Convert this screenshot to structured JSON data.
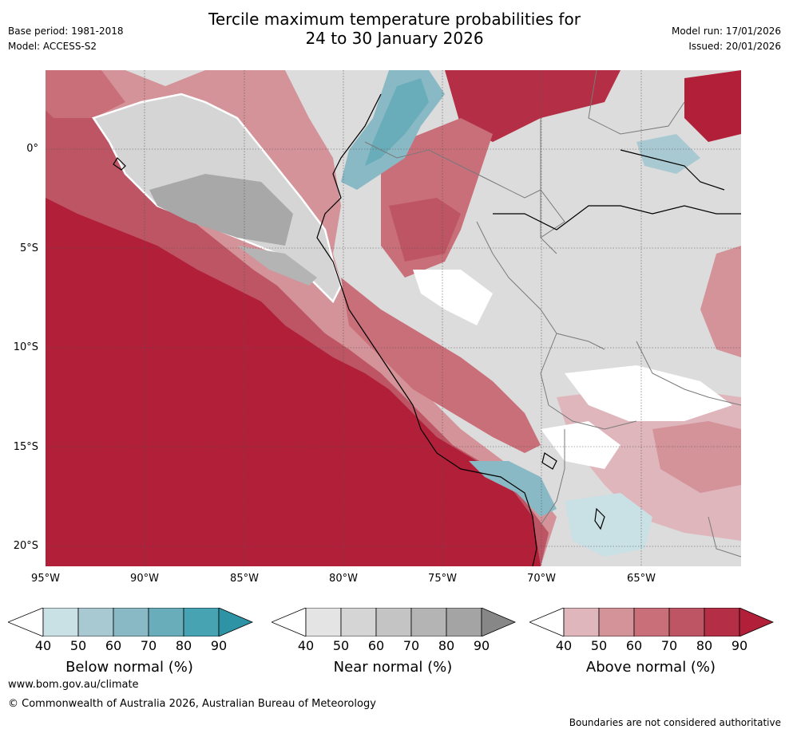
{
  "header": {
    "title_line1": "Tercile maximum temperature probabilities for",
    "title_line2": "24 to 30 January 2026",
    "base_period": "Base period: 1981-2018",
    "model": "Model: ACCESS-S2",
    "model_run": "Model run: 17/01/2026",
    "issued": "Issued: 20/01/2026"
  },
  "map": {
    "latitude_labels": [
      "0°",
      "5°S",
      "10°S",
      "15°S",
      "20°S"
    ],
    "longitude_labels": [
      "95°W",
      "90°W",
      "85°W",
      "80°W",
      "75°W",
      "70°W",
      "65°W"
    ],
    "colors": {
      "above": [
        "#dfb6bc",
        "#d49299",
        "#c96f7a",
        "#be5565",
        "#b42e45",
        "#b21f38"
      ],
      "near": [
        "#e4e4e4",
        "#d5d5d5",
        "#c4c4c4",
        "#b4b4b4",
        "#a4a4a4",
        "#8a8a8a"
      ],
      "below": [
        "#c9e0e5",
        "#a8c9d1",
        "#89b9c4",
        "#68adb9",
        "#47a2b1",
        "#2f93a6"
      ],
      "land_border": "#7a7a7a",
      "coast": "#000000",
      "grid": "#555555"
    }
  },
  "colorbars": [
    {
      "label": "Below normal (%)",
      "ticks": [
        "40",
        "50",
        "60",
        "70",
        "80",
        "90"
      ],
      "colors": [
        "#ffffff",
        "#c9e0e5",
        "#a8c9d1",
        "#89b9c4",
        "#68adb9",
        "#47a2b1",
        "#2f93a6"
      ]
    },
    {
      "label": "Near normal (%)",
      "ticks": [
        "40",
        "50",
        "60",
        "70",
        "80",
        "90"
      ],
      "colors": [
        "#ffffff",
        "#e4e4e4",
        "#d5d5d5",
        "#c4c4c4",
        "#b4b4b4",
        "#a4a4a4",
        "#878787"
      ]
    },
    {
      "label": "Above normal (%)",
      "ticks": [
        "40",
        "50",
        "60",
        "70",
        "80",
        "90"
      ],
      "colors": [
        "#ffffff",
        "#dfb6bc",
        "#d49299",
        "#c96f7a",
        "#be5565",
        "#b42e45",
        "#b21f38"
      ]
    }
  ],
  "footer": {
    "url": "www.bom.gov.au/climate",
    "copyright": "© Commonwealth of Australia 2026, Australian Bureau of Meteorology",
    "disclaimer": "Boundaries are not considered authoritative"
  }
}
